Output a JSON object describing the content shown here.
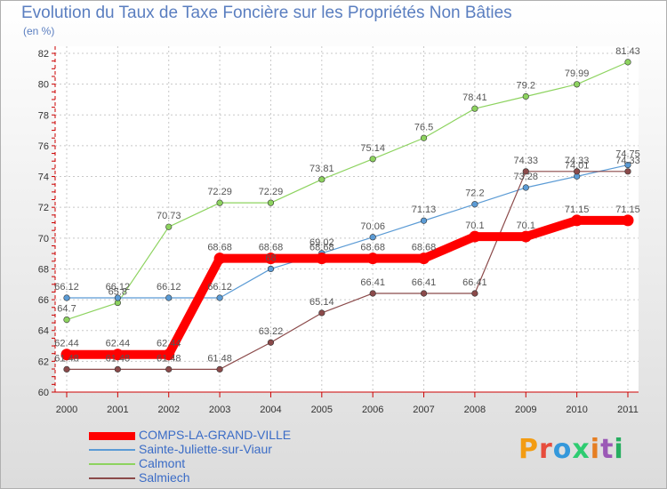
{
  "chart_data": {
    "type": "line",
    "title": "Evolution du Taux de Taxe Foncière sur les Propriétés Non Bâties",
    "subtitle": "(en %)",
    "x": [
      "2000",
      "2001",
      "2002",
      "2003",
      "2004",
      "2005",
      "2006",
      "2007",
      "2008",
      "2009",
      "2010",
      "2011"
    ],
    "ylim": [
      60,
      82
    ],
    "yticks": [
      60,
      62,
      64,
      66,
      68,
      70,
      72,
      74,
      76,
      78,
      80,
      82
    ],
    "grid": true,
    "legend_position": "bottom-left",
    "series": [
      {
        "name": "COMPS-LA-GRAND-VILLE",
        "color": "#ff0000",
        "values": [
          62.44,
          62.44,
          62.44,
          68.68,
          68.68,
          68.68,
          68.68,
          68.68,
          70.1,
          70.1,
          71.15,
          71.15
        ],
        "labels": [
          "62.44",
          "62.44",
          "62.44",
          "68.68",
          "68.68",
          "68.68",
          "68.68",
          "68.68",
          "70.1",
          "70.1",
          "71.15",
          "71.15"
        ]
      },
      {
        "name": "Sainte-Juliette-sur-Viaur",
        "color": "#5b9bd5",
        "values": [
          66.12,
          66.12,
          66.12,
          66.12,
          68.0,
          69.02,
          70.06,
          71.13,
          72.2,
          73.28,
          74.01,
          74.75
        ],
        "labels": [
          "66.12",
          "66.12",
          "66.12",
          "66.12",
          "68",
          "69.02",
          "70.06",
          "71.13",
          "72.2",
          "73.28",
          "74.01",
          "74.75"
        ]
      },
      {
        "name": "Calmont",
        "color": "#8dd35f",
        "values": [
          64.7,
          65.8,
          70.73,
          72.29,
          72.29,
          73.81,
          75.14,
          76.5,
          78.41,
          79.2,
          79.99,
          81.43
        ],
        "labels": [
          "64.7",
          "65.8",
          "70.73",
          "72.29",
          "72.29",
          "73.81",
          "75.14",
          "76.5",
          "78.41",
          "79.2",
          "79.99",
          "81.43"
        ]
      },
      {
        "name": "Salmiech",
        "color": "#8b4a4a",
        "values": [
          61.48,
          61.48,
          61.48,
          61.48,
          63.22,
          65.14,
          66.41,
          66.41,
          66.41,
          74.33,
          74.33,
          74.33
        ],
        "labels": [
          "61.48",
          "61.48",
          "61.48",
          "61.48",
          "63.22",
          "65.14",
          "66.41",
          "66.41",
          "66.41",
          "74.33",
          "74.33",
          "74.33"
        ]
      }
    ]
  },
  "logo": {
    "text": "Proxiti",
    "letters": [
      "P",
      "r",
      "o",
      "x",
      "i",
      "t",
      "i"
    ],
    "colors": [
      "#f39c12",
      "#e74c3c",
      "#3498db",
      "#2ecc71",
      "#e67e22",
      "#9b59b6",
      "#27ae60"
    ]
  }
}
